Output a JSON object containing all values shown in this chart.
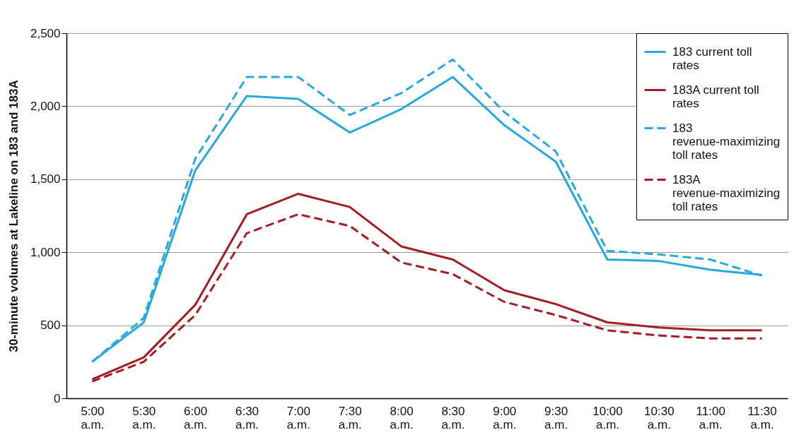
{
  "chart_data": {
    "type": "line",
    "ylabel": "30-minute volumes at Lakeline on 183 and 183A",
    "categories": [
      "5:00 a.m.",
      "5:30 a.m.",
      "6:00 a.m.",
      "6:30 a.m.",
      "7:00 a.m.",
      "7:30 a.m.",
      "8:00 a.m.",
      "8:30 a.m.",
      "9:00 a.m.",
      "9:30 a.m.",
      "10:00 a.m.",
      "10:30 a.m.",
      "11:00 a.m.",
      "11:30 a.m."
    ],
    "series": [
      {
        "name": "183 current toll rates",
        "color": "#29a8e0",
        "line_style": "solid",
        "values": [
          250,
          520,
          1560,
          2070,
          2050,
          1820,
          1980,
          2200,
          1870,
          1620,
          950,
          940,
          880,
          845
        ]
      },
      {
        "name": "183A current toll rates",
        "color": "#a51c24",
        "line_style": "solid",
        "values": [
          130,
          280,
          640,
          1260,
          1400,
          1310,
          1040,
          950,
          740,
          645,
          520,
          485,
          465,
          465
        ]
      },
      {
        "name": "183 revenue-maximizing toll rates",
        "color": "#29a8e0",
        "line_style": "dashed",
        "values": [
          250,
          550,
          1640,
          2200,
          2200,
          1940,
          2090,
          2320,
          1960,
          1690,
          1010,
          985,
          950,
          840
        ]
      },
      {
        "name": "183A revenue-maximizing toll rates",
        "color": "#a51c24",
        "line_style": "dashed",
        "values": [
          115,
          250,
          570,
          1130,
          1260,
          1180,
          930,
          850,
          660,
          570,
          465,
          430,
          410,
          410
        ]
      }
    ],
    "ylim": [
      0,
      2500
    ],
    "yticks": [
      0,
      500,
      {
        "value": 1000,
        "label": "1,000"
      },
      {
        "value": 1500,
        "label": "1,500"
      },
      {
        "value": 2000,
        "label": "2,000"
      },
      {
        "value": 2500,
        "label": "2,500"
      }
    ],
    "grid": "y",
    "legend": "top right",
    "marker": "none"
  }
}
